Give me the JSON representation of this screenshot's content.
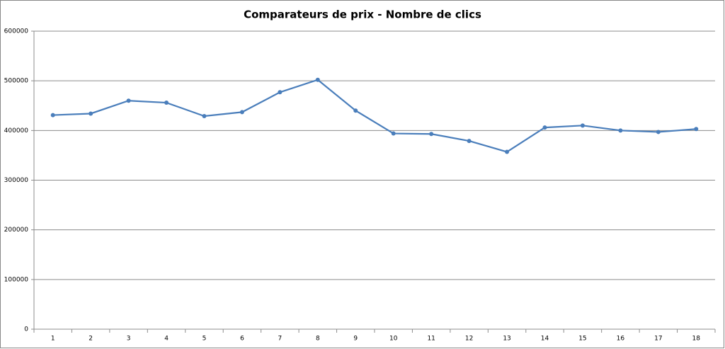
{
  "chart_data": {
    "type": "line",
    "title": "Comparateurs de prix - Nombre de clics",
    "categories": [
      "1",
      "2",
      "3",
      "4",
      "5",
      "6",
      "7",
      "8",
      "9",
      "10",
      "11",
      "12",
      "13",
      "14",
      "15",
      "16",
      "17",
      "18"
    ],
    "series": [
      {
        "name": "Nombre de clics",
        "color": "#4a7ebb",
        "values": [
          431000,
          434000,
          460000,
          456000,
          429000,
          437000,
          477000,
          502000,
          440000,
          394000,
          393000,
          379000,
          357000,
          406000,
          410000,
          400000,
          397000,
          403000
        ]
      }
    ],
    "ylim": [
      0,
      600000
    ],
    "yticks": [
      0,
      100000,
      200000,
      300000,
      400000,
      500000,
      600000
    ],
    "grid": true
  }
}
